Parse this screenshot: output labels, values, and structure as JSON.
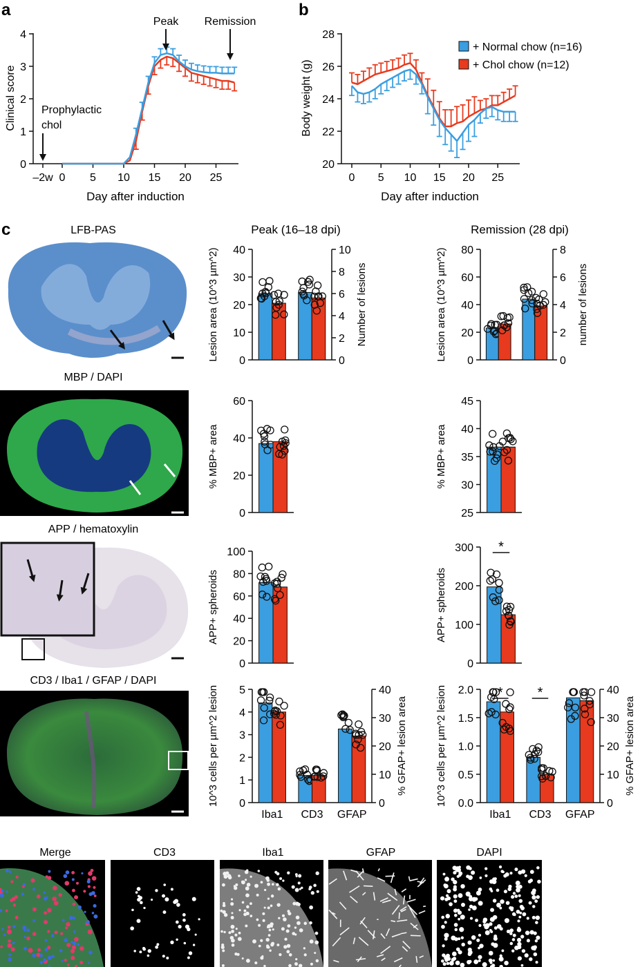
{
  "panel_labels": {
    "a": "a",
    "b": "b",
    "c": "c"
  },
  "legend": {
    "normal": {
      "label": "+ Normal chow (n=16)",
      "color": "#3a9ee0"
    },
    "chol": {
      "label": "+ Chol chow (n=12)",
      "color": "#e83a1e"
    }
  },
  "panel_a": {
    "ylabel": "Clinical score",
    "xlabel": "Day after induction",
    "xticks": [
      "–2w",
      "0",
      "5",
      "10",
      "15",
      "20",
      "25"
    ],
    "yticks": [
      "0",
      "1",
      "2",
      "3",
      "4"
    ],
    "annot_prophylactic": "Prophylactic",
    "annot_chol": "chol",
    "annot_peak": "Peak",
    "annot_remission": "Remission"
  },
  "panel_b": {
    "ylabel": "Body weight (g)",
    "xlabel": "Day after induction",
    "xticks": [
      "0",
      "5",
      "10",
      "15",
      "20",
      "25"
    ],
    "yticks": [
      "20",
      "22",
      "24",
      "26",
      "28"
    ]
  },
  "panel_c": {
    "col_peak": "Peak (16–18 dpi)",
    "col_remission": "Remission (28 dpi)",
    "img_lfb": "LFB-PAS",
    "img_mbp": "MBP / DAPI",
    "img_app": "APP / hematoxylin",
    "img_cd3": "CD3 / Iba1 / GFAP / DAPI",
    "bottom": [
      "Merge",
      "CD3",
      "Iba1",
      "GFAP",
      "DAPI"
    ]
  },
  "chart_data": [
    {
      "id": "a",
      "type": "line",
      "x": [
        -2,
        0,
        5,
        10,
        11,
        12,
        13,
        14,
        15,
        16,
        17,
        18,
        19,
        20,
        21,
        22,
        23,
        24,
        25,
        26,
        27,
        28
      ],
      "series": [
        {
          "name": "+ Normal chow (n=16)",
          "values": [
            0,
            0,
            0,
            0,
            0.2,
            0.9,
            1.7,
            2.5,
            3.1,
            3.35,
            3.4,
            3.35,
            3.15,
            3.0,
            2.9,
            2.85,
            2.82,
            2.8,
            2.8,
            2.78,
            2.78,
            2.78
          ]
        },
        {
          "name": "+ Chol chow (n=12)",
          "values": [
            0,
            0,
            0,
            0,
            0.1,
            0.7,
            1.6,
            2.4,
            3.0,
            3.2,
            3.3,
            3.25,
            3.1,
            2.95,
            2.8,
            2.75,
            2.7,
            2.65,
            2.6,
            2.55,
            2.55,
            2.5
          ]
        }
      ],
      "ylim": [
        0,
        4
      ]
    },
    {
      "id": "b",
      "type": "line",
      "x": [
        0,
        1,
        2,
        3,
        4,
        5,
        6,
        7,
        8,
        9,
        10,
        11,
        12,
        13,
        14,
        15,
        16,
        17,
        18,
        19,
        20,
        21,
        22,
        23,
        24,
        25,
        26,
        27,
        28
      ],
      "series": [
        {
          "name": "+ Normal chow (n=16)",
          "values": [
            24.8,
            24.4,
            24.3,
            24.4,
            24.6,
            24.9,
            25.1,
            25.3,
            25.5,
            25.7,
            25.8,
            25.5,
            24.9,
            24.1,
            23.4,
            22.7,
            22.2,
            21.8,
            21.4,
            21.9,
            22.4,
            22.7,
            23.1,
            23.4,
            23.5,
            23.3,
            23.2,
            23.2,
            23.2
          ]
        },
        {
          "name": "+ Chol chow (n=12)",
          "values": [
            25.0,
            24.9,
            25.1,
            25.3,
            25.5,
            25.6,
            25.7,
            25.8,
            25.9,
            26.1,
            26.2,
            25.8,
            25.0,
            24.2,
            23.5,
            22.8,
            22.3,
            22.3,
            22.5,
            22.6,
            22.9,
            23.1,
            23.3,
            23.4,
            23.6,
            23.6,
            23.8,
            24.0,
            24.2
          ]
        }
      ],
      "ylim": [
        20,
        28
      ]
    },
    {
      "id": "c-lesion-peak",
      "type": "bar",
      "categories": [
        "Lesion area",
        "Number of lesions"
      ],
      "ylabel": "Lesion area (10^3 µm^2)",
      "y2label": "Number of lesions",
      "ylim": [
        0,
        40
      ],
      "y2lim": [
        0,
        10
      ],
      "yticks": [
        "0",
        "10",
        "20",
        "30",
        "40"
      ],
      "y2ticks": [
        "0",
        "2",
        "4",
        "6",
        "8",
        "10"
      ],
      "series": [
        {
          "name": "+ Normal chow (n=16)",
          "values": [
            24,
            6.1
          ]
        },
        {
          "name": "+ Chol chow (n=12)",
          "values": [
            20.5,
            5.6
          ]
        }
      ]
    },
    {
      "id": "c-lesion-remission",
      "type": "bar",
      "categories": [
        "Lesion area",
        "number of lesions"
      ],
      "ylabel": "Lesion area (10^3 µm^2)",
      "y2label": "number of lesions",
      "ylim": [
        0,
        80
      ],
      "y2lim": [
        0,
        8
      ],
      "yticks": [
        "0",
        "20",
        "40",
        "60",
        "80"
      ],
      "y2ticks": [
        "0",
        "2",
        "4",
        "6",
        "8"
      ],
      "series": [
        {
          "name": "+ Normal chow (n=16)",
          "values": [
            23,
            4.4
          ]
        },
        {
          "name": "+ Chol chow (n=12)",
          "values": [
            26,
            3.9
          ]
        }
      ]
    },
    {
      "id": "c-mbp-peak",
      "type": "bar",
      "categories": [
        "MBP"
      ],
      "ylabel": "% MBP+ area",
      "ylim": [
        0,
        60
      ],
      "yticks": [
        "0",
        "20",
        "40",
        "60"
      ],
      "series": [
        {
          "name": "+ Normal chow (n=16)",
          "values": [
            37
          ]
        },
        {
          "name": "+ Chol chow (n=12)",
          "values": [
            38
          ]
        }
      ]
    },
    {
      "id": "c-mbp-remission",
      "type": "bar",
      "categories": [
        "MBP"
      ],
      "ylabel": "% MBP+ area",
      "ylim": [
        25,
        45
      ],
      "yticks": [
        "25",
        "30",
        "35",
        "40",
        "45"
      ],
      "series": [
        {
          "name": "+ Normal chow (n=16)",
          "values": [
            36.7
          ]
        },
        {
          "name": "+ Chol chow (n=12)",
          "values": [
            36.7
          ]
        }
      ]
    },
    {
      "id": "c-app-peak",
      "type": "bar",
      "categories": [
        "APP"
      ],
      "ylabel": "APP+ spheroids",
      "ylim": [
        0,
        100
      ],
      "yticks": [
        "0",
        "20",
        "40",
        "60",
        "80",
        "100"
      ],
      "series": [
        {
          "name": "+ Normal chow (n=16)",
          "values": [
            72
          ]
        },
        {
          "name": "+ Chol chow (n=12)",
          "values": [
            68
          ]
        }
      ]
    },
    {
      "id": "c-app-remission",
      "type": "bar",
      "categories": [
        "APP"
      ],
      "ylabel": "APP+ spheroids",
      "ylim": [
        0,
        300
      ],
      "yticks": [
        "0",
        "100",
        "200",
        "300"
      ],
      "annotations": [
        "*"
      ],
      "series": [
        {
          "name": "+ Normal chow (n=16)",
          "values": [
            197
          ]
        },
        {
          "name": "+ Chol chow (n=12)",
          "values": [
            125
          ]
        }
      ]
    },
    {
      "id": "c-cells-peak",
      "type": "bar",
      "categories": [
        "Iba1",
        "CD3",
        "GFAP"
      ],
      "ylabel": "10^3 cells per µm^2 lesion",
      "y2label": "% GFAP+ lesion area",
      "ylim": [
        0,
        5
      ],
      "y2lim": [
        0,
        40
      ],
      "yticks": [
        "0",
        "1",
        "2",
        "3",
        "4",
        "5"
      ],
      "y2ticks": [
        "0",
        "10",
        "20",
        "30",
        "40"
      ],
      "series": [
        {
          "name": "+ Normal chow (n=16)",
          "values": [
            4.4,
            1.2,
            26
          ]
        },
        {
          "name": "+ Chol chow (n=12)",
          "values": [
            4.0,
            1.2,
            23.5
          ]
        }
      ]
    },
    {
      "id": "c-cells-remission",
      "type": "bar",
      "categories": [
        "Iba1",
        "CD3",
        "GFAP"
      ],
      "ylabel": "10^3 cells per µm^2 lesion",
      "y2label": "% GFAP+ lesion area",
      "ylim": [
        0,
        2.0
      ],
      "y2lim": [
        0,
        40
      ],
      "yticks": [
        "0.0",
        "0.5",
        "1.0",
        "1.5",
        "2.0"
      ],
      "y2ticks": [
        "0",
        "10",
        "20",
        "30",
        "40"
      ],
      "annotations": [
        "*",
        "*"
      ],
      "series": [
        {
          "name": "+ Normal chow (n=16)",
          "values": [
            1.78,
            0.8,
            37
          ]
        },
        {
          "name": "+ Chol chow (n=12)",
          "values": [
            1.6,
            0.5,
            36
          ]
        }
      ]
    }
  ]
}
